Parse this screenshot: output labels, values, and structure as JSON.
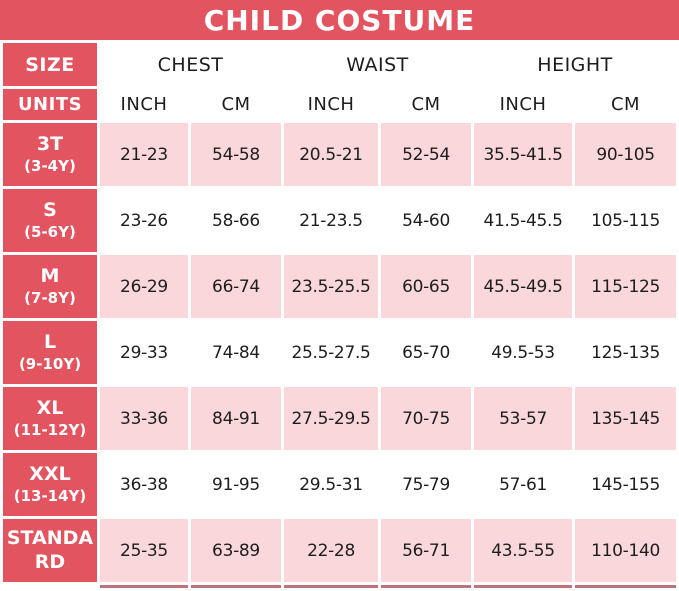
{
  "colors": {
    "accent_red": "#e25460",
    "row_pink": "#f9d7da",
    "crop_edge": "#b9747e",
    "text": "#1d1d1d",
    "background": "#ffffff"
  },
  "chart_data": {
    "type": "table",
    "title": "CHILD COSTUME",
    "corner_labels": {
      "size": "SIZE",
      "units": "UNITS"
    },
    "column_groups": [
      {
        "label": "CHEST",
        "span": 2
      },
      {
        "label": "WAIST",
        "span": 2
      },
      {
        "label": "HEIGHT",
        "span": 2
      }
    ],
    "unit_headers": [
      "INCH",
      "CM",
      "INCH",
      "CM",
      "INCH",
      "CM"
    ],
    "rows": [
      {
        "label_lines": [
          "3T",
          "(3-4Y)"
        ],
        "shaded": true,
        "values": [
          "21-23",
          "54-58",
          "20.5-21",
          "52-54",
          "35.5-41.5",
          "90-105"
        ]
      },
      {
        "label_lines": [
          "S",
          "(5-6Y)"
        ],
        "shaded": false,
        "values": [
          "23-26",
          "58-66",
          "21-23.5",
          "54-60",
          "41.5-45.5",
          "105-115"
        ]
      },
      {
        "label_lines": [
          "M",
          "(7-8Y)"
        ],
        "shaded": true,
        "values": [
          "26-29",
          "66-74",
          "23.5-25.5",
          "60-65",
          "45.5-49.5",
          "115-125"
        ]
      },
      {
        "label_lines": [
          "L",
          "(9-10Y)"
        ],
        "shaded": false,
        "values": [
          "29-33",
          "74-84",
          "25.5-27.5",
          "65-70",
          "49.5-53",
          "125-135"
        ]
      },
      {
        "label_lines": [
          "XL",
          "(11-12Y)"
        ],
        "shaded": true,
        "values": [
          "33-36",
          "84-91",
          "27.5-29.5",
          "70-75",
          "53-57",
          "135-145"
        ]
      },
      {
        "label_lines": [
          "XXL",
          "(13-14Y)"
        ],
        "shaded": false,
        "values": [
          "36-38",
          "91-95",
          "29.5-31",
          "75-79",
          "57-61",
          "145-155"
        ]
      },
      {
        "label_lines": [
          "STANDA",
          "RD"
        ],
        "shaded": true,
        "values": [
          "25-35",
          "63-89",
          "22-28",
          "56-71",
          "43.5-55",
          "110-140"
        ]
      }
    ]
  }
}
